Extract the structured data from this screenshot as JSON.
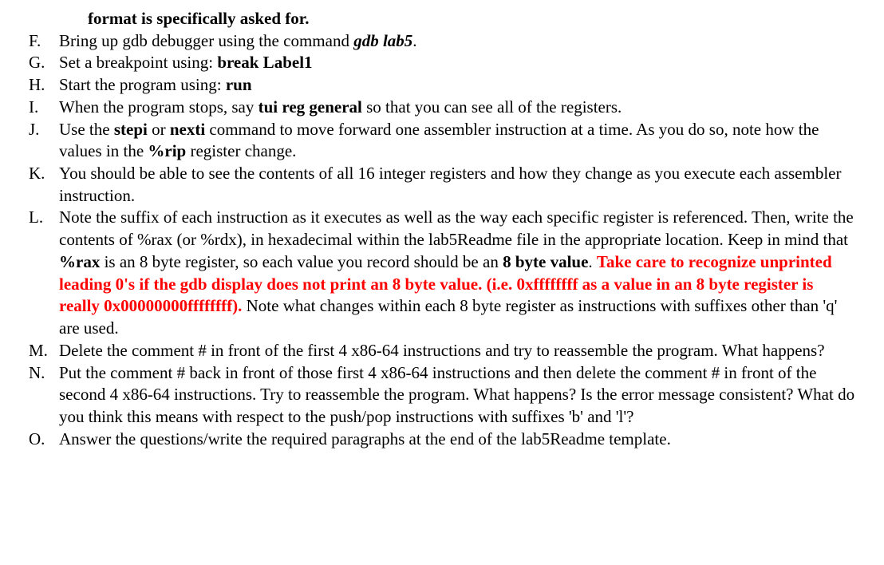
{
  "font_family": "Times New Roman",
  "base_font_size_pt": 16,
  "line_height": 1.32,
  "text_color": "#000000",
  "highlight_color": "#ff0000",
  "background_color": "#ffffff",
  "continuation_line": {
    "text_bold": "format is specifically asked for."
  },
  "items": [
    {
      "marker": "F.",
      "segments": [
        {
          "text": "Bring up gdb debugger using the command "
        },
        {
          "text": "gdb lab5",
          "style": "bold-italic"
        },
        {
          "text": "."
        }
      ]
    },
    {
      "marker": "G.",
      "segments": [
        {
          "text": "Set a breakpoint using:  "
        },
        {
          "text": "break Label1",
          "style": "bold"
        }
      ]
    },
    {
      "marker": "H.",
      "segments": [
        {
          "text": "Start the program using: "
        },
        {
          "text": "run",
          "style": "bold"
        }
      ]
    },
    {
      "marker": "I.",
      "segments": [
        {
          "text": "When the program stops, say "
        },
        {
          "text": "tui reg general",
          "style": "bold"
        },
        {
          "text": " so that you can see all of the registers."
        }
      ]
    },
    {
      "marker": "J.",
      "segments": [
        {
          "text": "Use the "
        },
        {
          "text": "stepi",
          "style": "bold"
        },
        {
          "text": " or "
        },
        {
          "text": "nexti",
          "style": "bold"
        },
        {
          "text": "  command to move forward one assembler instruction at a time. As you do so, note how the values in the "
        },
        {
          "text": "%rip",
          "style": "bold"
        },
        {
          "text": " register change."
        }
      ]
    },
    {
      "marker": "K.",
      "segments": [
        {
          "text": "You should be able to see the contents of all 16 integer registers and how they change as you execute each assembler instruction."
        }
      ]
    },
    {
      "marker": "L.",
      "segments": [
        {
          "text": "Note the suffix of each instruction as it executes as well as the way each specific register is referenced. Then, write the contents of %rax (or %rdx), in hexadecimal within the lab5Readme file in the appropriate location.  Keep in mind that "
        },
        {
          "text": "%rax",
          "style": "bold"
        },
        {
          "text": " is an 8 byte register, so each value you record should be an "
        },
        {
          "text": "8 byte value",
          "style": "bold"
        },
        {
          "text": ". "
        },
        {
          "text": "Take care to recognize unprinted leading 0's if the gdb display does not print an 8 byte value.  (i.e. 0xffffffff as a value in an 8 byte register is really 0x00000000ffffffff).",
          "style": "red-bold"
        },
        {
          "text": " Note what changes within each 8 byte register as instructions with suffixes other than 'q' are used."
        }
      ]
    },
    {
      "marker": "M.",
      "segments": [
        {
          "text": "Delete the comment # in front of the first 4 x86-64 instructions and try to reassemble the program.  What happens?"
        }
      ]
    },
    {
      "marker": "N.",
      "segments": [
        {
          "text": "Put the comment # back in front of those first 4 x86-64 instructions and then delete the comment # in front of the second 4 x86-64 instructions.  Try to reassemble the program.  What happens?  Is the error message consistent? What do you think this means with respect to the push/pop instructions with suffixes 'b' and 'l'?"
        }
      ]
    },
    {
      "marker": "O.",
      "segments": [
        {
          "text": "Answer the questions/write the required paragraphs at the end of the lab5Readme template."
        }
      ]
    }
  ]
}
